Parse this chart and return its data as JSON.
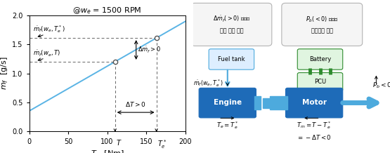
{
  "title": "@$w_e$ = 1500 RPM",
  "xlabel": "$T_e$  [Nm]",
  "ylabel": "$\\dot{m}_f$  [g/s]",
  "xlim": [
    0,
    200
  ],
  "ylim": [
    0,
    2
  ],
  "line_slope": 0.0077,
  "line_intercept": 0.355,
  "T_val": 110,
  "Te_star": 163,
  "xticks": [
    0,
    50,
    100,
    150,
    200
  ],
  "yticks": [
    0,
    0.5,
    1.0,
    1.5,
    2.0
  ],
  "line_color": "#5ab4e5",
  "dashed_color": "#666666",
  "arrow_color": "#222222",
  "bg_color": "#ffffff",
  "blue_dark": "#1e6bb8",
  "blue_mid": "#4daadd",
  "blue_light": "#a8d4ee",
  "green_dark": "#2e8b2e",
  "green_light": "#c8f0c8",
  "bubble_blue_bg": "#e8f4fc",
  "bubble_green_bg": "#eafaea",
  "label_mf_T": "$\\dot{m}_f(w_e,T)$",
  "label_mf_Te": "$\\dot{m}_f(w_e,T_e^*)$",
  "label_delta_mf": "$\\Delta\\dot{m}_f>0$",
  "label_delta_T": "$\\Delta T>0$",
  "label_T": "$T$",
  "label_Te_star": "$T_e^*$"
}
